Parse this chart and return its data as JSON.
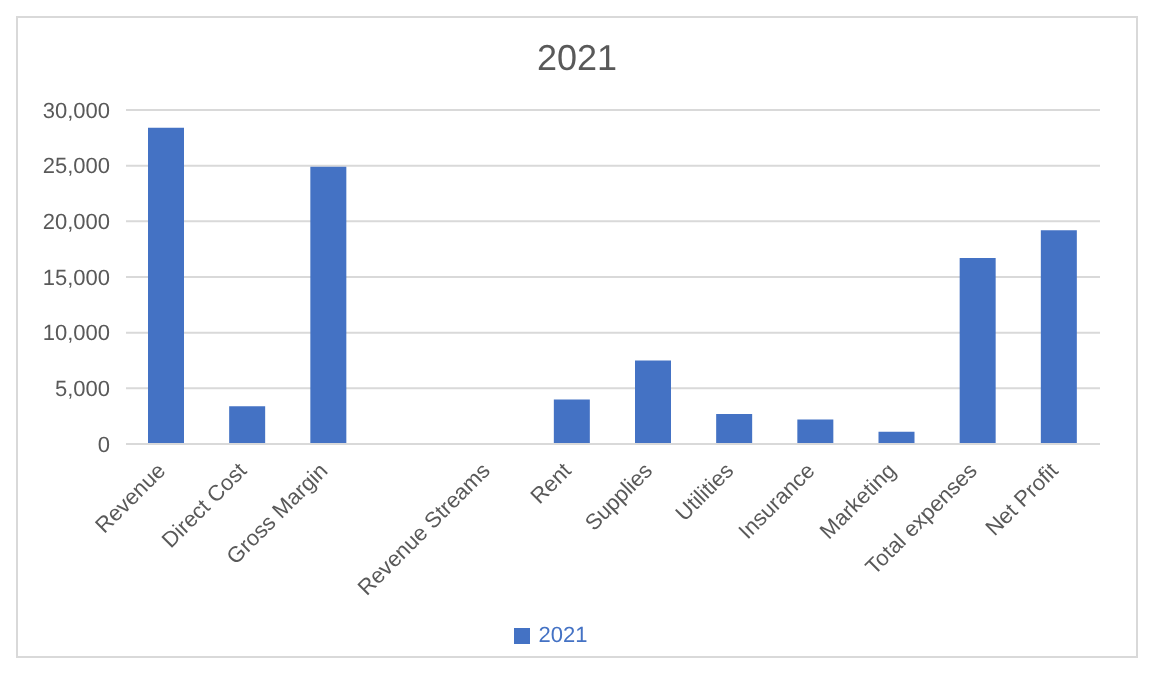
{
  "chart_data": {
    "type": "bar",
    "title": "2021",
    "categories": [
      "Revenue",
      "Direct Cost",
      "Gross Margin",
      null,
      "Revenue Streams",
      "Rent",
      "Supplies",
      "Utilities",
      "Insurance",
      "Marketing",
      "Total expenses",
      "Net Profit"
    ],
    "series": [
      {
        "name": "2021",
        "color": "#4472c4",
        "values": [
          28400,
          3400,
          24900,
          null,
          null,
          4000,
          7500,
          2700,
          2200,
          1100,
          16700,
          19200
        ]
      }
    ],
    "ylim": [
      0,
      30000
    ],
    "yticks": [
      {
        "value": 0,
        "label": "0"
      },
      {
        "value": 5000,
        "label": "5,000"
      },
      {
        "value": 10000,
        "label": "10,000"
      },
      {
        "value": 15000,
        "label": "15,000"
      },
      {
        "value": 20000,
        "label": "20,000"
      },
      {
        "value": 25000,
        "label": "25,000"
      },
      {
        "value": 30000,
        "label": "30,000"
      }
    ],
    "grid": "y",
    "legend": "bottom"
  }
}
